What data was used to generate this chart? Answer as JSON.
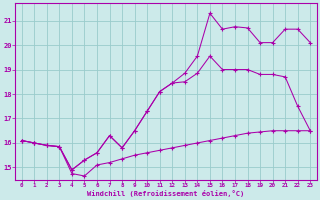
{
  "background_color": "#cceaea",
  "line_color": "#aa00aa",
  "grid_color": "#99cccc",
  "xlabel": "Windchill (Refroidissement éolien,°C)",
  "xlim": [
    -0.5,
    23.5
  ],
  "ylim": [
    14.5,
    21.7
  ],
  "yticks": [
    15,
    16,
    17,
    18,
    19,
    20,
    21
  ],
  "xticks": [
    0,
    1,
    2,
    3,
    4,
    5,
    6,
    7,
    8,
    9,
    10,
    11,
    12,
    13,
    14,
    15,
    16,
    17,
    18,
    19,
    20,
    21,
    22,
    23
  ],
  "line1_x": [
    0,
    1,
    2,
    3,
    4,
    5,
    6,
    7,
    8,
    9,
    10,
    11,
    12,
    13,
    14,
    15,
    16,
    17,
    18,
    19,
    20,
    21,
    22,
    23
  ],
  "line1_y": [
    16.1,
    16.0,
    15.9,
    15.85,
    14.9,
    15.3,
    15.6,
    16.3,
    15.8,
    16.5,
    17.3,
    18.1,
    18.45,
    18.5,
    18.85,
    19.55,
    19.0,
    19.0,
    19.0,
    18.8,
    18.8,
    18.7,
    17.5,
    16.5
  ],
  "line2_x": [
    0,
    1,
    2,
    3,
    4,
    5,
    6,
    7,
    8,
    9,
    10,
    11,
    12,
    13,
    14,
    15,
    16,
    17,
    18,
    19,
    20,
    21,
    22,
    23
  ],
  "line2_y": [
    16.1,
    16.0,
    15.9,
    15.85,
    14.9,
    15.3,
    15.6,
    16.3,
    15.8,
    16.5,
    17.3,
    18.1,
    18.45,
    18.85,
    19.55,
    21.3,
    20.65,
    20.75,
    20.7,
    20.1,
    20.1,
    20.65,
    20.65,
    20.1
  ],
  "line3_x": [
    0,
    1,
    2,
    3,
    4,
    5,
    6,
    7,
    8,
    9,
    10,
    11,
    12,
    13,
    14,
    15,
    16,
    17,
    18,
    19,
    20,
    21,
    22,
    23
  ],
  "line3_y": [
    16.1,
    16.0,
    15.9,
    15.85,
    14.75,
    14.65,
    15.1,
    15.2,
    15.35,
    15.5,
    15.6,
    15.7,
    15.8,
    15.9,
    16.0,
    16.1,
    16.2,
    16.3,
    16.4,
    16.45,
    16.5,
    16.5,
    16.5,
    16.5
  ]
}
